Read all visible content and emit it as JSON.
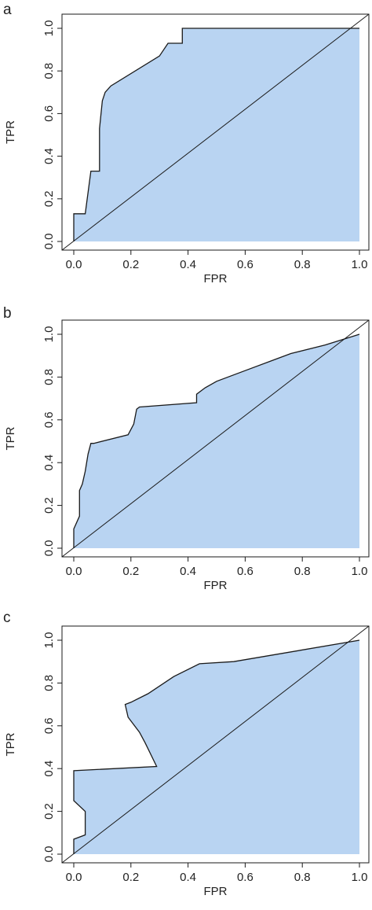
{
  "colors": {
    "fill": "#b9d4f2",
    "line": "#1a1a1a",
    "text": "#222222"
  },
  "chart_data": [
    {
      "type": "area",
      "panel": "a",
      "xlabel": "FPR",
      "ylabel": "TPR",
      "xlim": [
        0.0,
        1.0
      ],
      "ylim": [
        0.0,
        1.0
      ],
      "x_ticks": [
        "0.0",
        "0.2",
        "0.4",
        "0.6",
        "0.8",
        "1.0"
      ],
      "y_ticks": [
        "0.0",
        "0.2",
        "0.4",
        "0.6",
        "0.8",
        "1.0"
      ],
      "grid": false,
      "diagonal": true,
      "x": [
        0.0,
        0.0,
        0.04,
        0.06,
        0.06,
        0.09,
        0.09,
        0.1,
        0.11,
        0.13,
        0.3,
        0.33,
        0.36,
        0.38,
        0.38,
        1.0
      ],
      "y": [
        0.0,
        0.13,
        0.13,
        0.33,
        0.33,
        0.33,
        0.53,
        0.66,
        0.7,
        0.73,
        0.87,
        0.93,
        0.93,
        0.93,
        1.0,
        1.0
      ]
    },
    {
      "type": "area",
      "panel": "b",
      "xlabel": "FPR",
      "ylabel": "TPR",
      "xlim": [
        0.0,
        1.0
      ],
      "ylim": [
        0.0,
        1.0
      ],
      "x_ticks": [
        "0.0",
        "0.2",
        "0.4",
        "0.6",
        "0.8",
        "1.0"
      ],
      "y_ticks": [
        "0.0",
        "0.2",
        "0.4",
        "0.6",
        "0.8",
        "1.0"
      ],
      "grid": false,
      "diagonal": true,
      "x": [
        0.0,
        0.0,
        0.02,
        0.02,
        0.03,
        0.04,
        0.05,
        0.06,
        0.07,
        0.19,
        0.21,
        0.22,
        0.23,
        0.43,
        0.43,
        0.46,
        0.5,
        0.6,
        0.7,
        0.76,
        0.88,
        1.0
      ],
      "y": [
        0.0,
        0.09,
        0.15,
        0.27,
        0.3,
        0.36,
        0.44,
        0.49,
        0.49,
        0.53,
        0.58,
        0.65,
        0.66,
        0.68,
        0.72,
        0.75,
        0.78,
        0.83,
        0.88,
        0.91,
        0.95,
        1.0
      ]
    },
    {
      "type": "area",
      "panel": "c",
      "xlabel": "FPR",
      "ylabel": "TPR",
      "xlim": [
        0.0,
        1.0
      ],
      "ylim": [
        0.0,
        1.0
      ],
      "x_ticks": [
        "0.0",
        "0.2",
        "0.4",
        "0.6",
        "0.8",
        "1.0"
      ],
      "y_ticks": [
        "0.0",
        "0.2",
        "0.4",
        "0.6",
        "0.8",
        "1.0"
      ],
      "grid": false,
      "diagonal": true,
      "x": [
        0.0,
        0.0,
        0.04,
        0.04,
        0.0,
        0.0,
        0.29,
        0.25,
        0.23,
        0.19,
        0.18,
        0.2,
        0.26,
        0.35,
        0.44,
        0.56,
        1.0
      ],
      "y": [
        0.0,
        0.07,
        0.09,
        0.2,
        0.25,
        0.39,
        0.41,
        0.52,
        0.57,
        0.64,
        0.7,
        0.71,
        0.75,
        0.83,
        0.89,
        0.9,
        1.0
      ]
    }
  ]
}
